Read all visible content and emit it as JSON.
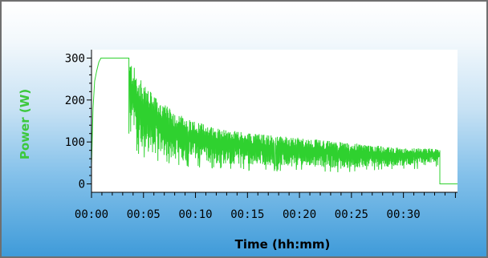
{
  "colors": {
    "series": "#2fd12f",
    "ylabel": "#3cc83c",
    "axis": "#000000",
    "plot_background": "#ffffff"
  },
  "chart_data": {
    "type": "line",
    "title": "",
    "xlabel": "Time (hh:mm)",
    "ylabel": "Power (W)",
    "xlim": [
      0,
      35.2
    ],
    "ylim": [
      -20,
      320
    ],
    "x_ticks": [
      0,
      5,
      10,
      15,
      20,
      25,
      30
    ],
    "x_tick_labels": [
      "00:00",
      "00:05",
      "00:10",
      "00:15",
      "00:20",
      "00:25",
      "00:30"
    ],
    "y_ticks": [
      0,
      100,
      200,
      300
    ],
    "y_tick_labels": [
      "0",
      "100",
      "200",
      "300"
    ],
    "grid": false,
    "legend": false,
    "x_unit": "minutes",
    "series": [
      {
        "style": "line",
        "x": [
          0.0,
          0.15,
          0.3,
          0.5,
          0.7,
          0.9,
          1.1,
          3.6,
          3.6,
          3.65
        ],
        "y": [
          45,
          180,
          245,
          270,
          290,
          300,
          300,
          300,
          120,
          270
        ]
      },
      {
        "style": "noise-band",
        "x": [
          3.7,
          4.0,
          4.5,
          5.0,
          6.0,
          7.0,
          8.0,
          9.0,
          10.0,
          12.0,
          14.0,
          16.0,
          18.0,
          20.0,
          22.0,
          24.0,
          26.0,
          28.0,
          30.0,
          32.0,
          33.0,
          33.5
        ],
        "upper": [
          300,
          285,
          255,
          240,
          210,
          190,
          170,
          160,
          150,
          135,
          125,
          120,
          115,
          110,
          105,
          100,
          95,
          90,
          85,
          85,
          85,
          80
        ],
        "lower": [
          90,
          95,
          75,
          65,
          60,
          55,
          50,
          45,
          45,
          40,
          40,
          35,
          35,
          35,
          35,
          30,
          35,
          35,
          40,
          40,
          45,
          50
        ]
      },
      {
        "style": "line",
        "x": [
          33.5,
          33.5,
          35.2
        ],
        "y": [
          80,
          0,
          0
        ]
      }
    ]
  }
}
